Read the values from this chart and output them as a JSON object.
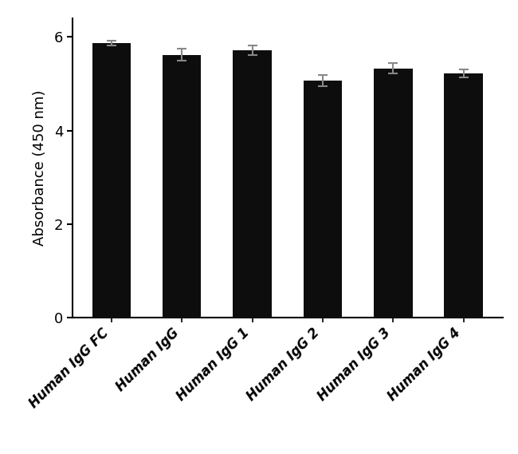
{
  "categories": [
    "Human IgG FC",
    "Human IgG",
    "Human IgG 1",
    "Human IgG 2",
    "Human IgG 3",
    "Human IgG 4"
  ],
  "values": [
    5.87,
    5.62,
    5.72,
    5.07,
    5.33,
    5.22
  ],
  "errors": [
    0.055,
    0.12,
    0.1,
    0.12,
    0.11,
    0.09
  ],
  "bar_color": "#0d0d0d",
  "error_color": "#888888",
  "ylabel": "Absorbance (450 nm)",
  "ylim": [
    0,
    6.4
  ],
  "yticks": [
    0,
    2,
    4,
    6
  ],
  "background_color": "#ffffff",
  "bar_width": 0.55,
  "ylabel_fontsize": 13,
  "tick_fontsize": 13,
  "xlabel_fontsize": 12
}
